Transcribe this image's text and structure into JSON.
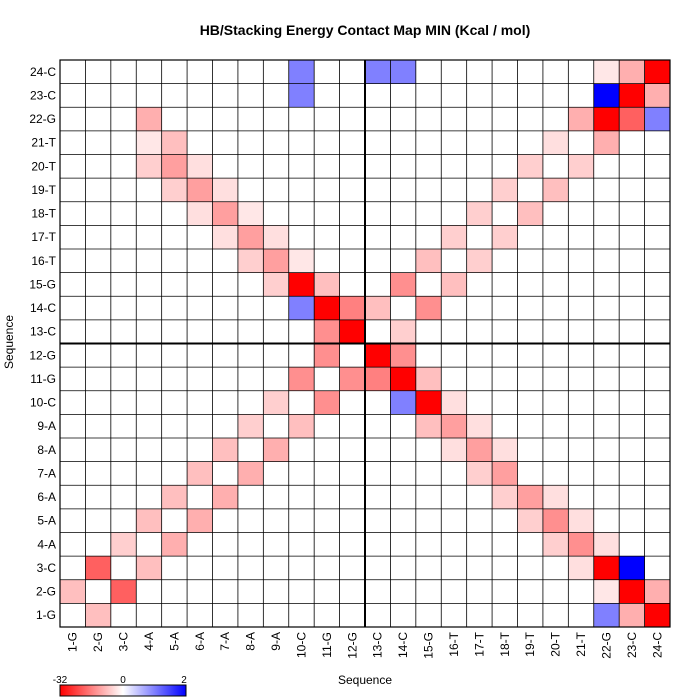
{
  "chart_data": {
    "type": "heatmap",
    "title": "HB/Stacking Energy Contact Map MIN (Kcal / mol)",
    "xlabel": "Sequence",
    "ylabel": "Sequence",
    "labels": [
      "1-G",
      "2-G",
      "3-C",
      "4-A",
      "5-A",
      "6-A",
      "7-A",
      "8-A",
      "9-A",
      "10-C",
      "11-G",
      "12-G",
      "13-C",
      "14-C",
      "15-G",
      "16-T",
      "17-T",
      "18-T",
      "19-T",
      "20-T",
      "21-T",
      "22-G",
      "23-C",
      "24-C"
    ],
    "value_range": [
      -32,
      2
    ],
    "colorbar_labels": [
      "-32",
      "0",
      "2"
    ],
    "colors": {
      "negative": "#ff0000",
      "zero": "#ffffff",
      "positive": "#0000ff",
      "grid": "#000000"
    },
    "strand_divider_after": "12-G",
    "grid": true,
    "cells": [
      [
        "24-C",
        "24-C",
        -32
      ],
      [
        "24-C",
        "23-C",
        -10
      ],
      [
        "24-C",
        "22-G",
        -3
      ],
      [
        "24-C",
        "10-C",
        1
      ],
      [
        "24-C",
        "13-C",
        1
      ],
      [
        "24-C",
        "14-C",
        1
      ],
      [
        "24-C",
        "22-G",
        -3
      ],
      [
        "24-C",
        "23-C",
        -6
      ],
      [
        "23-C",
        "24-C",
        -10
      ],
      [
        "23-C",
        "23-C",
        -32
      ],
      [
        "23-C",
        "22-G",
        2
      ],
      [
        "23-C",
        "10-C",
        1
      ],
      [
        "23-C",
        "22-G",
        -18
      ],
      [
        "23-C",
        "24-C",
        -4
      ],
      [
        "22-G",
        "24-C",
        1
      ],
      [
        "22-G",
        "22-G",
        -32
      ],
      [
        "22-G",
        "21-T",
        -10
      ],
      [
        "22-G",
        "4-A",
        -10
      ],
      [
        "22-G",
        "21-T",
        -8
      ],
      [
        "22-G",
        "23-C",
        -20
      ],
      [
        "22-G",
        "24-C",
        -3
      ],
      [
        "21-T",
        "4-A",
        -3
      ],
      [
        "21-T",
        "5-A",
        -8
      ],
      [
        "21-T",
        "20-T",
        -4
      ],
      [
        "21-T",
        "22-G",
        -10
      ],
      [
        "20-T",
        "4-A",
        -6
      ],
      [
        "20-T",
        "5-A",
        -12
      ],
      [
        "20-T",
        "6-A",
        -4
      ],
      [
        "20-T",
        "19-T",
        -6
      ],
      [
        "20-T",
        "21-T",
        -6
      ],
      [
        "19-T",
        "5-A",
        -6
      ],
      [
        "19-T",
        "6-A",
        -12
      ],
      [
        "19-T",
        "7-A",
        -4
      ],
      [
        "19-T",
        "18-T",
        -6
      ],
      [
        "19-T",
        "20-T",
        -8
      ],
      [
        "18-T",
        "6-A",
        -4
      ],
      [
        "18-T",
        "7-A",
        -12
      ],
      [
        "18-T",
        "8-A",
        -3
      ],
      [
        "18-T",
        "17-T",
        -6
      ],
      [
        "18-T",
        "19-T",
        -8
      ],
      [
        "17-T",
        "7-A",
        -4
      ],
      [
        "17-T",
        "8-A",
        -12
      ],
      [
        "17-T",
        "9-A",
        -4
      ],
      [
        "17-T",
        "16-T",
        -6
      ],
      [
        "17-T",
        "18-T",
        -6
      ],
      [
        "16-T",
        "8-A",
        -6
      ],
      [
        "16-T",
        "9-A",
        -12
      ],
      [
        "16-T",
        "10-C",
        -3
      ],
      [
        "16-T",
        "15-G",
        -8
      ],
      [
        "16-T",
        "17-T",
        -6
      ],
      [
        "15-G",
        "9-A",
        -6
      ],
      [
        "15-G",
        "10-C",
        -32
      ],
      [
        "15-G",
        "11-G",
        -8
      ],
      [
        "15-G",
        "14-C",
        -14
      ],
      [
        "15-G",
        "16-T",
        -8
      ],
      [
        "14-C",
        "10-C",
        1
      ],
      [
        "14-C",
        "11-G",
        -32
      ],
      [
        "14-C",
        "12-G",
        -16
      ],
      [
        "14-C",
        "13-C",
        -8
      ],
      [
        "14-C",
        "15-G",
        -14
      ],
      [
        "13-C",
        "11-G",
        -14
      ],
      [
        "13-C",
        "12-G",
        -32
      ],
      [
        "13-C",
        "14-C",
        -6
      ],
      [
        "12-G",
        "11-G",
        -14
      ],
      [
        "12-G",
        "13-C",
        -32
      ],
      [
        "12-G",
        "14-C",
        -14
      ],
      [
        "11-G",
        "10-C",
        -14
      ],
      [
        "11-G",
        "12-G",
        -14
      ],
      [
        "11-G",
        "13-C",
        -16
      ],
      [
        "11-G",
        "14-C",
        -32
      ],
      [
        "11-G",
        "15-G",
        -8
      ],
      [
        "10-C",
        "9-A",
        -6
      ],
      [
        "10-C",
        "11-G",
        -14
      ],
      [
        "10-C",
        "14-C",
        1
      ],
      [
        "10-C",
        "15-G",
        -32
      ],
      [
        "10-C",
        "16-T",
        -4
      ],
      [
        "9-A",
        "8-A",
        -6
      ],
      [
        "9-A",
        "10-C",
        -8
      ],
      [
        "9-A",
        "15-G",
        -8
      ],
      [
        "9-A",
        "16-T",
        -12
      ],
      [
        "9-A",
        "17-T",
        -4
      ],
      [
        "8-A",
        "7-A",
        -8
      ],
      [
        "8-A",
        "9-A",
        -10
      ],
      [
        "8-A",
        "16-T",
        -4
      ],
      [
        "8-A",
        "17-T",
        -12
      ],
      [
        "8-A",
        "18-T",
        -4
      ],
      [
        "7-A",
        "6-A",
        -8
      ],
      [
        "7-A",
        "8-A",
        -10
      ],
      [
        "7-A",
        "17-T",
        -6
      ],
      [
        "7-A",
        "18-T",
        -12
      ],
      [
        "6-A",
        "5-A",
        -8
      ],
      [
        "6-A",
        "7-A",
        -10
      ],
      [
        "6-A",
        "18-T",
        -6
      ],
      [
        "6-A",
        "19-T",
        -12
      ],
      [
        "6-A",
        "20-T",
        -4
      ],
      [
        "5-A",
        "4-A",
        -8
      ],
      [
        "5-A",
        "6-A",
        -10
      ],
      [
        "5-A",
        "19-T",
        -6
      ],
      [
        "5-A",
        "20-T",
        -14
      ],
      [
        "5-A",
        "21-T",
        -4
      ],
      [
        "4-A",
        "3-C",
        -6
      ],
      [
        "4-A",
        "5-A",
        -10
      ],
      [
        "4-A",
        "20-T",
        -6
      ],
      [
        "4-A",
        "21-T",
        -14
      ],
      [
        "4-A",
        "22-G",
        -4
      ],
      [
        "3-C",
        "2-G",
        -20
      ],
      [
        "3-C",
        "4-A",
        -8
      ],
      [
        "3-C",
        "21-T",
        -4
      ],
      [
        "3-C",
        "22-G",
        -32
      ],
      [
        "3-C",
        "23-C",
        2
      ],
      [
        "2-G",
        "1-G",
        -8
      ],
      [
        "2-G",
        "3-C",
        -20
      ],
      [
        "2-G",
        "22-G",
        -3
      ],
      [
        "2-G",
        "23-C",
        -32
      ],
      [
        "2-G",
        "24-C",
        -10
      ],
      [
        "1-G",
        "2-G",
        -8
      ],
      [
        "1-G",
        "22-G",
        1
      ],
      [
        "1-G",
        "23-C",
        -10
      ],
      [
        "1-G",
        "24-C",
        -32
      ]
    ]
  }
}
